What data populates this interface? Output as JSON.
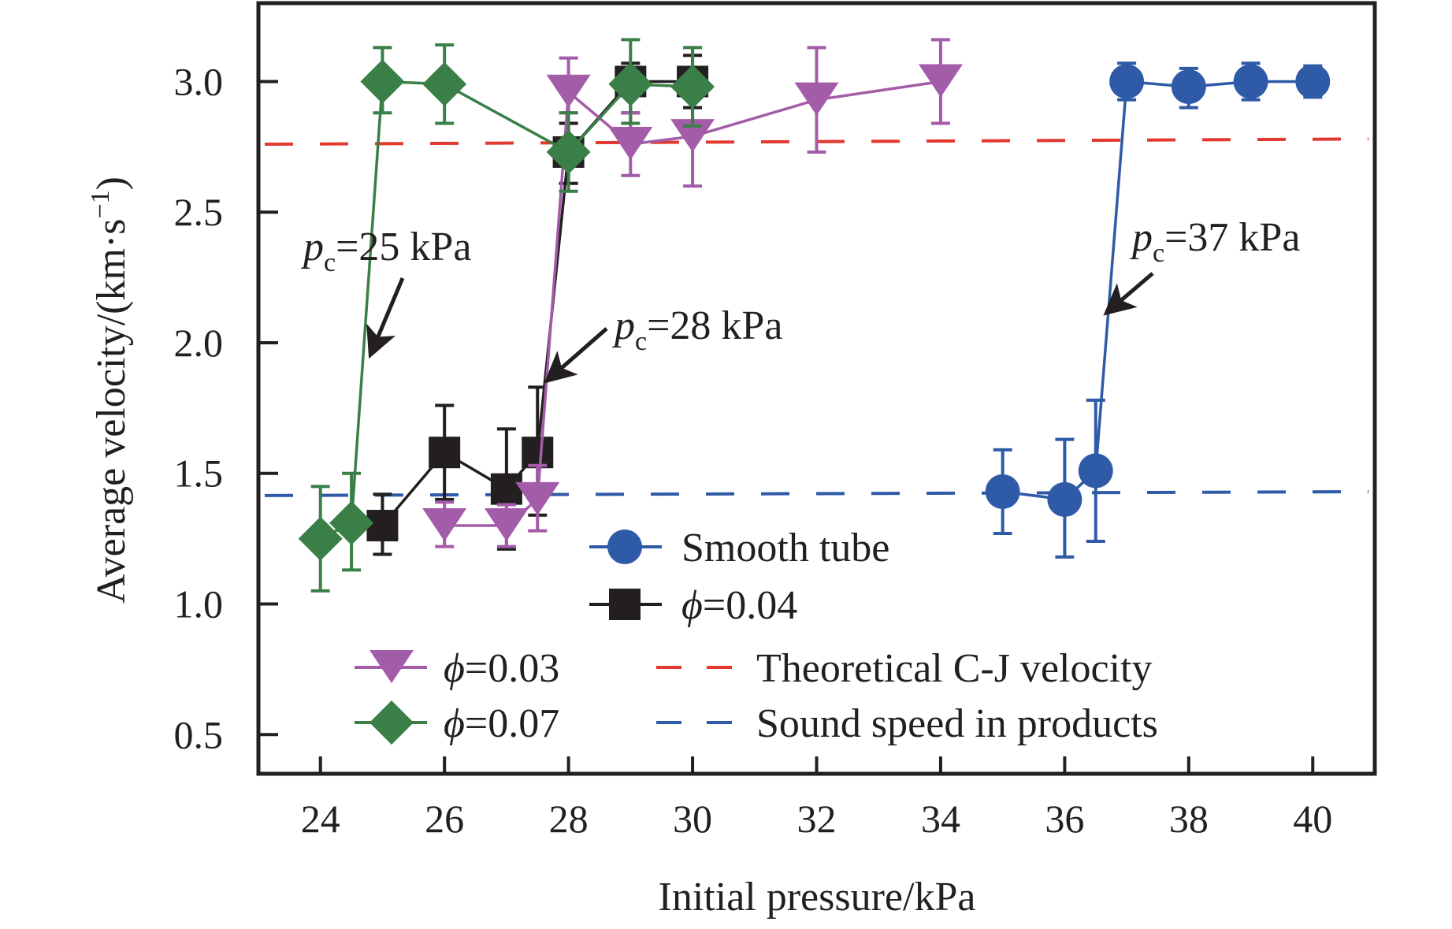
{
  "chart_data": {
    "type": "line",
    "title": "",
    "xlabel": "Initial pressure/kPa",
    "ylabel": "Average velocity/(km·s⁻¹)",
    "ylabel_parts": {
      "main": "Average velocity/(km·s",
      "sup": "−1",
      "close": ")"
    },
    "xlim": [
      23,
      41
    ],
    "ylim": [
      0.35,
      3.3
    ],
    "xticks": [
      24,
      26,
      28,
      30,
      32,
      34,
      36,
      38,
      40
    ],
    "xtick_labels": [
      "24",
      "26",
      "28",
      "30",
      "32",
      "34",
      "36",
      "38",
      "40"
    ],
    "yticks": [
      0.5,
      1.0,
      1.5,
      2.0,
      2.5,
      3.0
    ],
    "ytick_labels": [
      "0.5",
      "1.0",
      "1.5",
      "2.0",
      "2.5",
      "3.0"
    ],
    "grid": false,
    "series": [
      {
        "name": "Smooth tube",
        "label_symbol": "",
        "label_value": "Smooth tube",
        "marker": "circle",
        "color": "#2e5aa8",
        "x": [
          35,
          36,
          36.5,
          37,
          38,
          39,
          40
        ],
        "y": [
          1.43,
          1.4,
          1.51,
          3.0,
          2.98,
          3.0,
          3.0
        ],
        "err_low": [
          1.27,
          1.18,
          1.24,
          2.93,
          2.9,
          2.93,
          2.94
        ],
        "err_high": [
          1.59,
          1.63,
          1.78,
          3.07,
          3.05,
          3.07,
          3.06
        ]
      },
      {
        "name": "ϕ=0.04",
        "label_symbol": "ϕ",
        "label_value": "=0.04",
        "marker": "square",
        "color": "#231f20",
        "x": [
          25,
          26,
          27,
          27.5,
          28,
          29,
          30
        ],
        "y": [
          1.3,
          1.58,
          1.44,
          1.58,
          2.73,
          3.0,
          3.0
        ],
        "err_low": [
          1.19,
          1.4,
          1.21,
          1.34,
          2.61,
          2.88,
          2.9
        ],
        "err_high": [
          1.42,
          1.76,
          1.67,
          1.83,
          2.84,
          3.07,
          3.1
        ]
      },
      {
        "name": "ϕ=0.03",
        "label_symbol": "ϕ",
        "label_value": "=0.03",
        "marker": "triangle-down",
        "color": "#a35ca8",
        "x": [
          26,
          27,
          27.5,
          28,
          29,
          30,
          32,
          34
        ],
        "y": [
          1.3,
          1.3,
          1.4,
          2.96,
          2.76,
          2.79,
          2.93,
          3.0
        ],
        "err_low": [
          1.22,
          1.22,
          1.28,
          2.88,
          2.64,
          2.6,
          2.73,
          2.84
        ],
        "err_high": [
          1.39,
          1.38,
          1.53,
          3.09,
          2.88,
          3.0,
          3.13,
          3.16
        ]
      },
      {
        "name": "ϕ=0.07",
        "label_symbol": "ϕ",
        "label_value": "=0.07",
        "marker": "diamond",
        "color": "#3a7f47",
        "x": [
          24,
          24.5,
          25,
          26,
          28,
          29,
          30
        ],
        "y": [
          1.25,
          1.31,
          3.0,
          2.99,
          2.73,
          2.99,
          2.98
        ],
        "err_low": [
          1.05,
          1.13,
          2.88,
          2.84,
          2.58,
          2.84,
          2.83
        ],
        "err_high": [
          1.45,
          1.5,
          3.13,
          3.14,
          2.88,
          3.16,
          3.13
        ]
      }
    ],
    "reference_lines": [
      {
        "name": "Theoretical C-J velocity",
        "style": "dashed",
        "color": "#e2382f",
        "x": [
          23,
          41
        ],
        "y": [
          2.76,
          2.78
        ]
      },
      {
        "name": "Sound speed in products",
        "style": "dashed",
        "color": "#2e5aa8",
        "x": [
          23,
          41
        ],
        "y": [
          1.415,
          1.43
        ]
      }
    ],
    "legend": {
      "placement": "center-bottom",
      "items": [
        {
          "series": 0
        },
        {
          "series": 1
        },
        {
          "series": 2
        },
        {
          "series": 3
        },
        {
          "reference": 0
        },
        {
          "reference": 1
        }
      ]
    },
    "annotations": [
      {
        "symbol": "p",
        "sub": "c",
        "value": "=25 kPa",
        "points_to": [
          24.7,
          2.0
        ],
        "color": "#231f20"
      },
      {
        "symbol": "p",
        "sub": "c",
        "value": "=28 kPa",
        "points_to": [
          27.9,
          1.85
        ],
        "color": "#231f20"
      },
      {
        "symbol": "p",
        "sub": "c",
        "value": "=37 kPa",
        "points_to": [
          36.87,
          2.09
        ],
        "color": "#231f20"
      }
    ]
  }
}
